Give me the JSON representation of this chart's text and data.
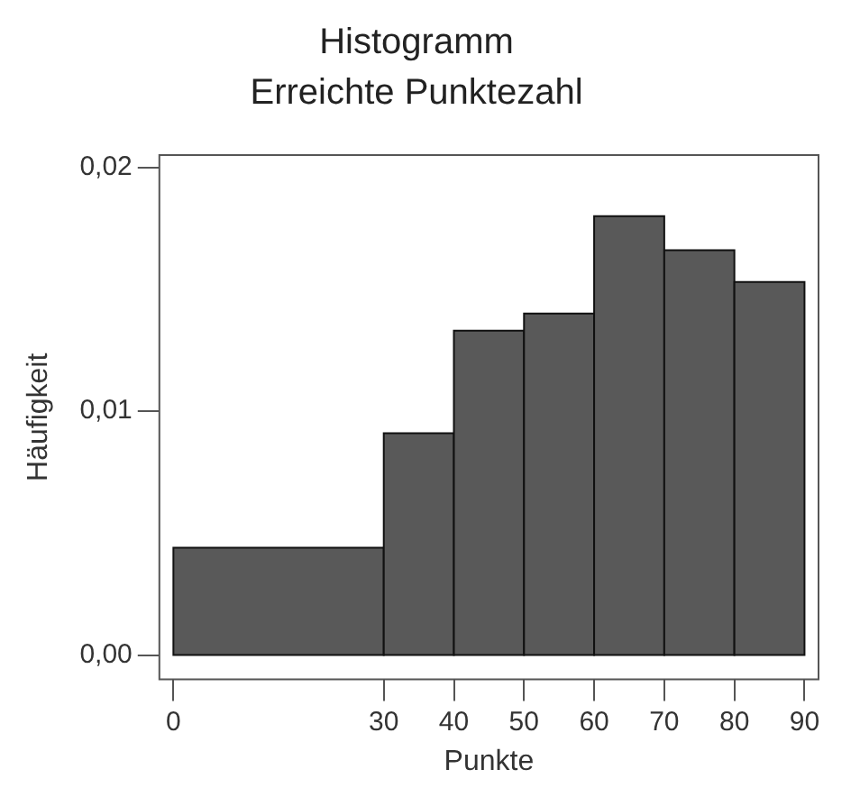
{
  "chart_data": {
    "type": "histogram",
    "title": "Histogramm",
    "subtitle": "Erreichte Punktezahl",
    "xlabel": "Punkte",
    "ylabel": "Häufigkeit",
    "bins": [
      0,
      30,
      40,
      50,
      60,
      70,
      80,
      90
    ],
    "values": [
      0.0044,
      0.0091,
      0.0133,
      0.014,
      0.018,
      0.0166,
      0.0153
    ],
    "color": "#595959",
    "xlim": [
      -2,
      92
    ],
    "xticks": [
      0,
      30,
      40,
      50,
      60,
      70,
      80,
      90
    ],
    "ylim": [
      -0.001,
      0.0205
    ],
    "yticks": [
      {
        "value": 0,
        "label": "0,00"
      },
      {
        "value": 0.01,
        "label": "0,01"
      },
      {
        "value": 0.02,
        "label": "0,02"
      }
    ],
    "grid": false,
    "legend": false
  }
}
